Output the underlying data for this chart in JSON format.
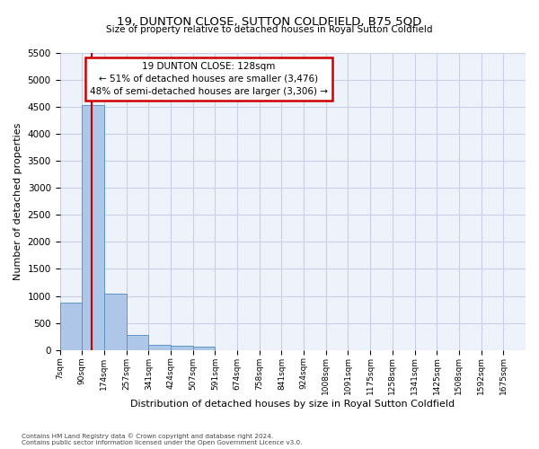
{
  "title": "19, DUNTON CLOSE, SUTTON COLDFIELD, B75 5QD",
  "subtitle": "Size of property relative to detached houses in Royal Sutton Coldfield",
  "xlabel": "Distribution of detached houses by size in Royal Sutton Coldfield",
  "ylabel": "Number of detached properties",
  "bar_color": "#aec6e8",
  "bar_edge_color": "#5a96c8",
  "highlight_line_color": "#cc0000",
  "annotation_text": "19 DUNTON CLOSE: 128sqm\n← 51% of detached houses are smaller (3,476)\n48% of semi-detached houses are larger (3,306) →",
  "annotation_box_color": "#ffffff",
  "annotation_box_edge": "#cc0000",
  "footer_line1": "Contains HM Land Registry data © Crown copyright and database right 2024.",
  "footer_line2": "Contains public sector information licensed under the Open Government Licence v3.0.",
  "bin_labels": [
    "7sqm",
    "90sqm",
    "174sqm",
    "257sqm",
    "341sqm",
    "424sqm",
    "507sqm",
    "591sqm",
    "674sqm",
    "758sqm",
    "841sqm",
    "924sqm",
    "1008sqm",
    "1091sqm",
    "1175sqm",
    "1258sqm",
    "1341sqm",
    "1425sqm",
    "1508sqm",
    "1592sqm",
    "1675sqm"
  ],
  "bin_values": [
    880,
    4540,
    1050,
    275,
    90,
    75,
    55,
    0,
    0,
    0,
    0,
    0,
    0,
    0,
    0,
    0,
    0,
    0,
    0,
    0,
    0
  ],
  "property_sqm": 128,
  "ylim": [
    0,
    5500
  ],
  "yticks": [
    0,
    500,
    1000,
    1500,
    2000,
    2500,
    3000,
    3500,
    4000,
    4500,
    5000,
    5500
  ],
  "background_color": "#eef2fb",
  "grid_color": "#c8d0e8"
}
